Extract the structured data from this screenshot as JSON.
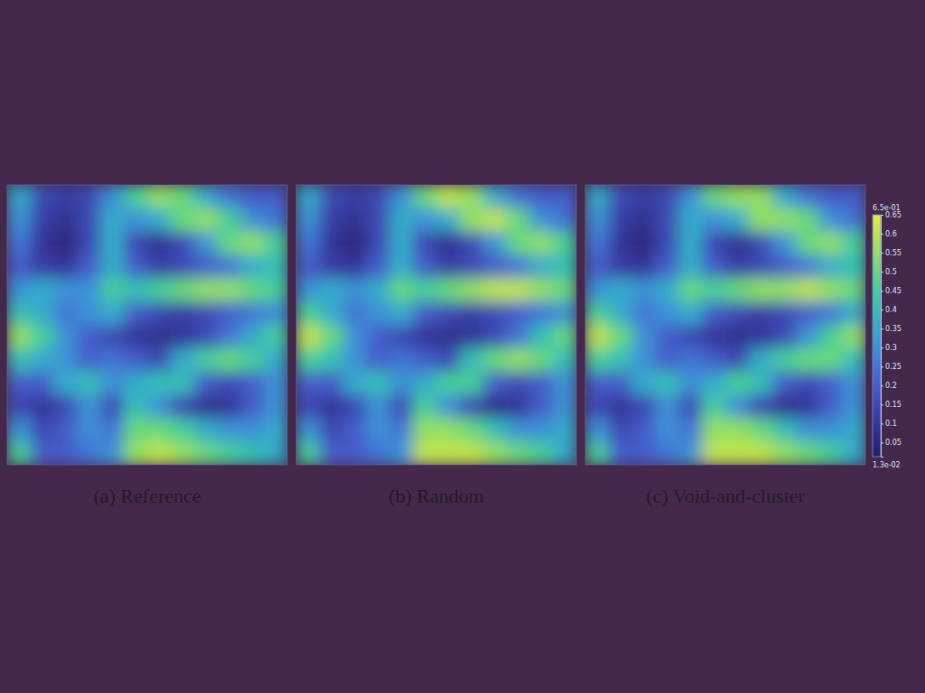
{
  "chart_data": {
    "type": "heatmap",
    "panels": [
      {
        "title": "(a) Reference",
        "cells": [
          [
            0.35,
            0.15,
            0.12,
            0.15,
            0.3,
            0.45,
            0.55,
            0.5,
            0.35,
            0.25,
            0.2,
            0.2
          ],
          [
            0.3,
            0.12,
            0.08,
            0.15,
            0.35,
            0.3,
            0.35,
            0.5,
            0.55,
            0.45,
            0.3,
            0.25
          ],
          [
            0.25,
            0.1,
            0.05,
            0.15,
            0.35,
            0.15,
            0.08,
            0.15,
            0.3,
            0.5,
            0.55,
            0.45
          ],
          [
            0.2,
            0.12,
            0.1,
            0.2,
            0.35,
            0.2,
            0.12,
            0.15,
            0.2,
            0.25,
            0.35,
            0.4
          ],
          [
            0.3,
            0.35,
            0.3,
            0.3,
            0.45,
            0.4,
            0.45,
            0.5,
            0.55,
            0.55,
            0.5,
            0.45
          ],
          [
            0.4,
            0.35,
            0.25,
            0.3,
            0.35,
            0.2,
            0.15,
            0.12,
            0.15,
            0.2,
            0.25,
            0.3
          ],
          [
            0.55,
            0.45,
            0.3,
            0.2,
            0.15,
            0.1,
            0.08,
            0.1,
            0.15,
            0.25,
            0.35,
            0.45
          ],
          [
            0.4,
            0.35,
            0.3,
            0.2,
            0.25,
            0.2,
            0.15,
            0.35,
            0.45,
            0.5,
            0.45,
            0.35
          ],
          [
            0.2,
            0.2,
            0.35,
            0.4,
            0.3,
            0.35,
            0.4,
            0.4,
            0.2,
            0.15,
            0.2,
            0.3
          ],
          [
            0.15,
            0.1,
            0.15,
            0.3,
            0.15,
            0.4,
            0.3,
            0.15,
            0.08,
            0.1,
            0.2,
            0.3
          ],
          [
            0.3,
            0.15,
            0.2,
            0.3,
            0.25,
            0.5,
            0.5,
            0.45,
            0.35,
            0.3,
            0.3,
            0.35
          ],
          [
            0.45,
            0.2,
            0.2,
            0.25,
            0.3,
            0.55,
            0.6,
            0.55,
            0.5,
            0.45,
            0.4,
            0.35
          ]
        ]
      },
      {
        "title": "(b) Random",
        "cells": [
          [
            0.35,
            0.15,
            0.12,
            0.15,
            0.3,
            0.5,
            0.6,
            0.55,
            0.35,
            0.25,
            0.2,
            0.2
          ],
          [
            0.3,
            0.12,
            0.08,
            0.15,
            0.35,
            0.3,
            0.35,
            0.55,
            0.6,
            0.5,
            0.3,
            0.25
          ],
          [
            0.25,
            0.1,
            0.05,
            0.15,
            0.35,
            0.15,
            0.08,
            0.15,
            0.3,
            0.5,
            0.55,
            0.45
          ],
          [
            0.2,
            0.12,
            0.1,
            0.2,
            0.35,
            0.2,
            0.12,
            0.15,
            0.2,
            0.25,
            0.35,
            0.4
          ],
          [
            0.3,
            0.35,
            0.3,
            0.35,
            0.5,
            0.45,
            0.5,
            0.55,
            0.6,
            0.6,
            0.55,
            0.5
          ],
          [
            0.45,
            0.35,
            0.25,
            0.3,
            0.35,
            0.2,
            0.15,
            0.12,
            0.15,
            0.2,
            0.25,
            0.3
          ],
          [
            0.6,
            0.5,
            0.3,
            0.2,
            0.15,
            0.1,
            0.08,
            0.1,
            0.15,
            0.25,
            0.4,
            0.5
          ],
          [
            0.45,
            0.4,
            0.3,
            0.2,
            0.25,
            0.2,
            0.15,
            0.4,
            0.5,
            0.55,
            0.5,
            0.4
          ],
          [
            0.2,
            0.2,
            0.35,
            0.4,
            0.3,
            0.35,
            0.45,
            0.45,
            0.2,
            0.15,
            0.2,
            0.3
          ],
          [
            0.15,
            0.1,
            0.15,
            0.3,
            0.15,
            0.45,
            0.3,
            0.15,
            0.08,
            0.1,
            0.2,
            0.3
          ],
          [
            0.3,
            0.15,
            0.2,
            0.3,
            0.25,
            0.55,
            0.55,
            0.5,
            0.4,
            0.3,
            0.3,
            0.35
          ],
          [
            0.45,
            0.2,
            0.2,
            0.25,
            0.3,
            0.6,
            0.6,
            0.6,
            0.55,
            0.5,
            0.45,
            0.35
          ]
        ]
      },
      {
        "title": "(c) Void-and-cluster",
        "cells": [
          [
            0.35,
            0.15,
            0.12,
            0.15,
            0.3,
            0.5,
            0.55,
            0.55,
            0.35,
            0.25,
            0.2,
            0.2
          ],
          [
            0.3,
            0.12,
            0.08,
            0.15,
            0.35,
            0.3,
            0.35,
            0.55,
            0.55,
            0.5,
            0.3,
            0.25
          ],
          [
            0.25,
            0.1,
            0.05,
            0.15,
            0.35,
            0.15,
            0.08,
            0.15,
            0.3,
            0.5,
            0.55,
            0.45
          ],
          [
            0.2,
            0.12,
            0.1,
            0.2,
            0.35,
            0.2,
            0.12,
            0.15,
            0.2,
            0.25,
            0.35,
            0.4
          ],
          [
            0.3,
            0.35,
            0.3,
            0.35,
            0.5,
            0.45,
            0.5,
            0.55,
            0.55,
            0.6,
            0.55,
            0.5
          ],
          [
            0.45,
            0.35,
            0.25,
            0.3,
            0.35,
            0.2,
            0.15,
            0.12,
            0.15,
            0.2,
            0.25,
            0.35
          ],
          [
            0.6,
            0.5,
            0.3,
            0.2,
            0.15,
            0.1,
            0.08,
            0.1,
            0.15,
            0.3,
            0.45,
            0.55
          ],
          [
            0.45,
            0.4,
            0.3,
            0.2,
            0.25,
            0.2,
            0.15,
            0.35,
            0.45,
            0.5,
            0.5,
            0.4
          ],
          [
            0.2,
            0.2,
            0.35,
            0.4,
            0.3,
            0.35,
            0.45,
            0.4,
            0.2,
            0.15,
            0.2,
            0.3
          ],
          [
            0.15,
            0.1,
            0.15,
            0.3,
            0.15,
            0.45,
            0.3,
            0.15,
            0.08,
            0.1,
            0.2,
            0.3
          ],
          [
            0.3,
            0.15,
            0.2,
            0.3,
            0.25,
            0.55,
            0.55,
            0.5,
            0.4,
            0.3,
            0.3,
            0.35
          ],
          [
            0.45,
            0.2,
            0.2,
            0.25,
            0.3,
            0.6,
            0.6,
            0.6,
            0.55,
            0.5,
            0.45,
            0.35
          ]
        ]
      }
    ],
    "colorbar": {
      "range": [
        0.013,
        0.65
      ],
      "range_labels": [
        {
          "value": 0.65,
          "label": "6.5e-01"
        },
        {
          "value": 0.013,
          "label": "1.3e-02"
        }
      ],
      "ticks": [
        0.65,
        0.6,
        0.55,
        0.5,
        0.45,
        0.4,
        0.35,
        0.3,
        0.25,
        0.2,
        0.15,
        0.1,
        0.05
      ]
    }
  }
}
